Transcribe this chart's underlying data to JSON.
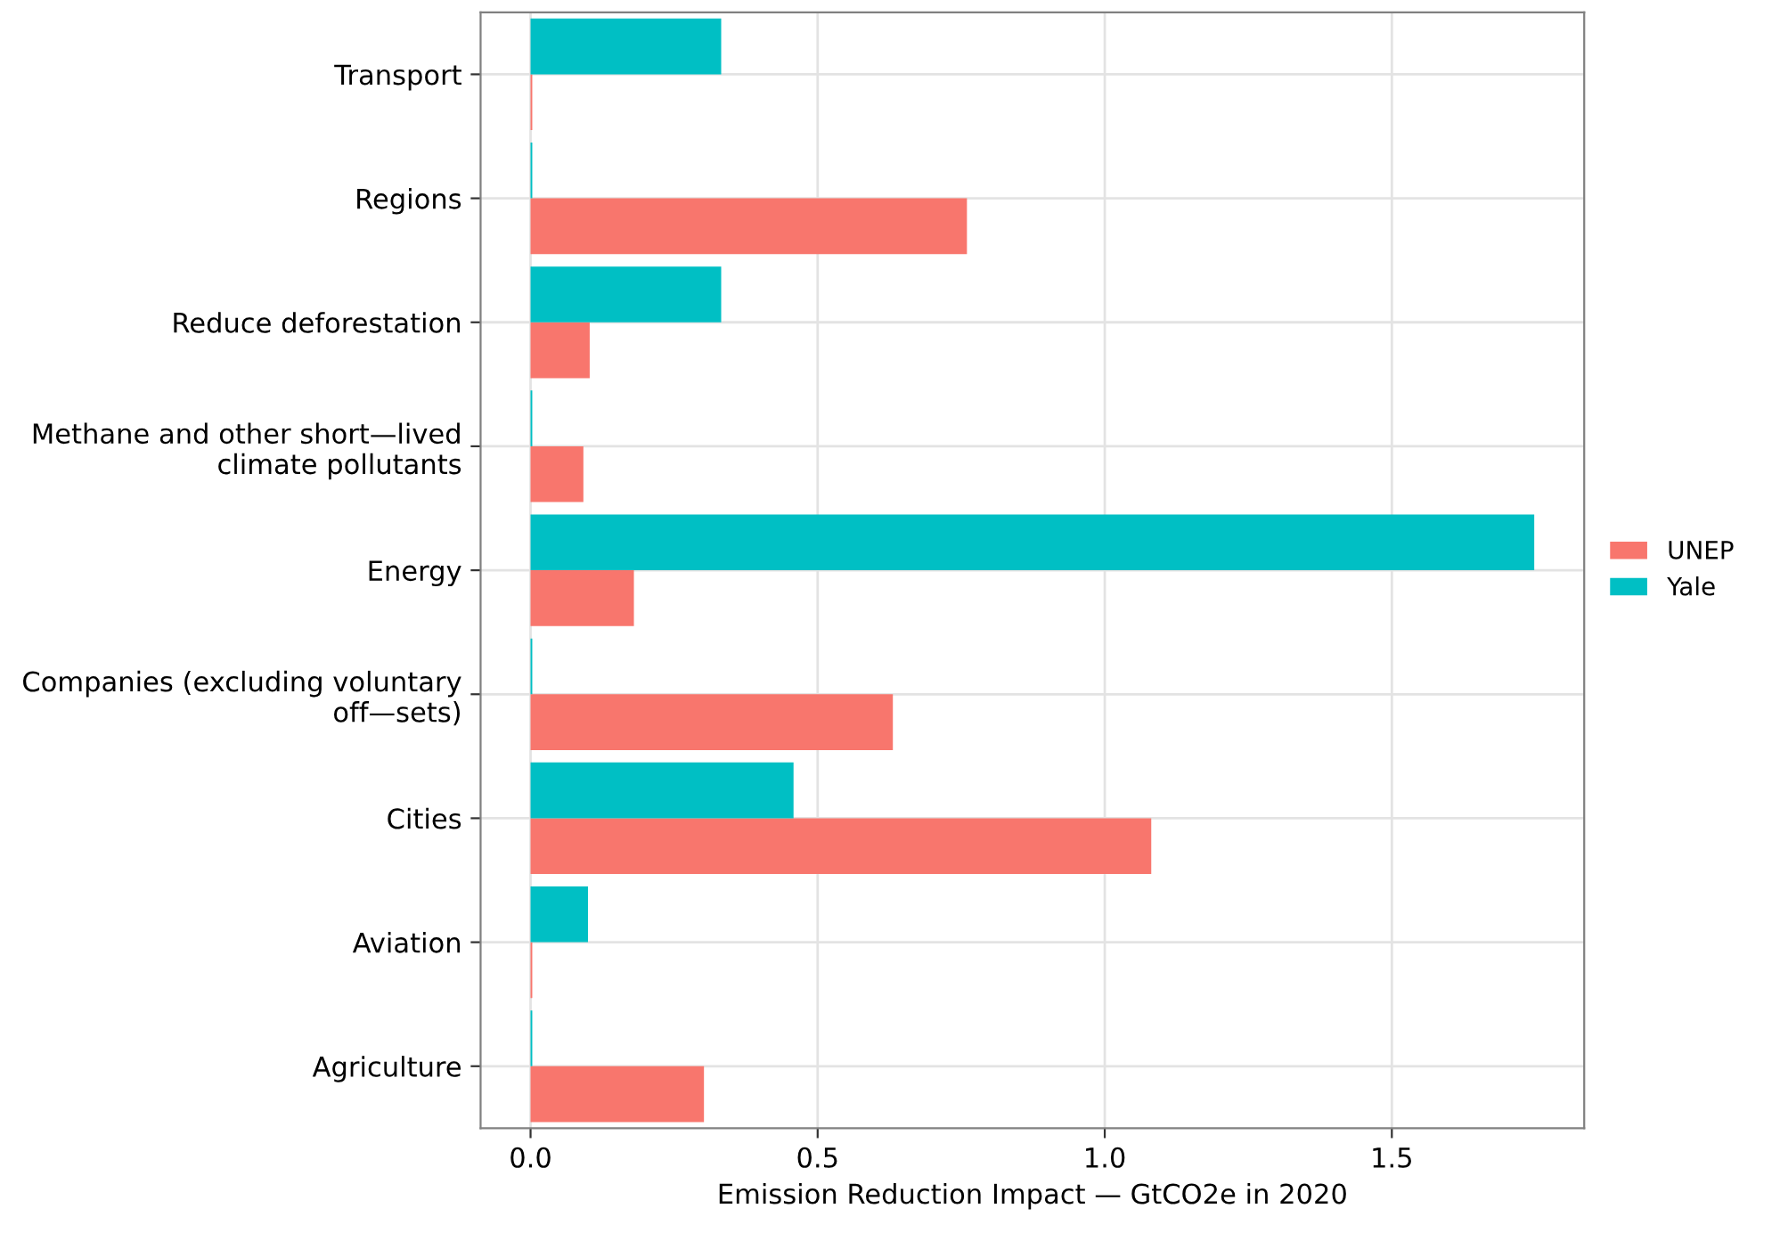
{
  "chart_data": {
    "type": "bar",
    "orientation": "horizontal",
    "xlabel": "Emission Reduction Impact — GtCO2e in 2020",
    "categories": [
      "Transport",
      "Regions",
      "Reduce deforestation",
      "Methane and other short—lived\nclimate pollutants",
      "Energy",
      "Companies (excluding voluntary\noff—sets)",
      "Cities",
      "Aviation",
      "Agriculture"
    ],
    "series": [
      {
        "name": "UNEP",
        "color": "#f8766d",
        "values": [
          0.003,
          0.76,
          0.103,
          0.092,
          0.18,
          0.631,
          1.081,
          0.003,
          0.302
        ]
      },
      {
        "name": "Yale",
        "color": "#00bfc4",
        "values": [
          0.332,
          0.003,
          0.332,
          0.003,
          1.748,
          0.003,
          0.458,
          0.1,
          0.003
        ]
      }
    ],
    "xlim": [
      -0.087,
      1.835
    ],
    "xticks": [
      {
        "value": 0,
        "label": "0.0"
      },
      0.5,
      {
        "value": 1,
        "label": "1.0"
      },
      1.5
    ],
    "grid": true,
    "legend": "right"
  }
}
